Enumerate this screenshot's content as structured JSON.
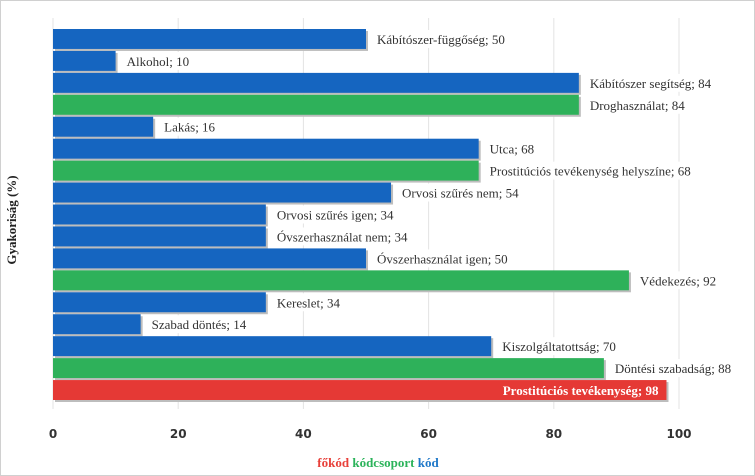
{
  "chart_data": {
    "type": "bar",
    "orientation": "horizontal",
    "ylabel": "Gyakoriság (%)",
    "xlim": [
      0,
      110
    ],
    "xticks": [
      0,
      20,
      40,
      60,
      80,
      100
    ],
    "grid": true,
    "legend": {
      "placement": "bottom",
      "items": [
        {
          "label": "főkód",
          "color": "#e8403a"
        },
        {
          "label": "kódcsoport",
          "color": "#2bb35a"
        },
        {
          "label": "kód",
          "color": "#1f78c8"
        }
      ]
    },
    "colors": {
      "kód": "#1565c0",
      "kódcsoport": "#2eb15a",
      "főkód": "#e53935"
    },
    "bars": [
      {
        "label": "Kábítószer-függőség; 50",
        "value": 50,
        "level": "kód"
      },
      {
        "label": "Alkohol; 10",
        "value": 10,
        "level": "kód"
      },
      {
        "label": "Kábítószer segítség; 84",
        "value": 84,
        "level": "kód"
      },
      {
        "label": "Droghasználat; 84",
        "value": 84,
        "level": "kódcsoport"
      },
      {
        "label": "Lakás; 16",
        "value": 16,
        "level": "kód"
      },
      {
        "label": "Utca; 68",
        "value": 68,
        "level": "kód"
      },
      {
        "label": "Prostitúciós tevékenység helyszíne; 68",
        "value": 68,
        "level": "kódcsoport"
      },
      {
        "label": "Orvosi szűrés nem; 54",
        "value": 54,
        "level": "kód"
      },
      {
        "label": "Orvosi szűrés igen; 34",
        "value": 34,
        "level": "kód"
      },
      {
        "label": "Óvszerhasználat nem; 34",
        "value": 34,
        "level": "kód"
      },
      {
        "label": "Óvszerhasználat igen; 50",
        "value": 50,
        "level": "kód"
      },
      {
        "label": "Védekezés; 92",
        "value": 92,
        "level": "kódcsoport"
      },
      {
        "label": "Kereslet; 34",
        "value": 34,
        "level": "kód"
      },
      {
        "label": "Szabad döntés; 14",
        "value": 14,
        "level": "kód"
      },
      {
        "label": "Kiszolgáltatottság; 70",
        "value": 70,
        "level": "kód"
      },
      {
        "label": "Döntési szabadság; 88",
        "value": 88,
        "level": "kódcsoport"
      },
      {
        "label": "Prostitúciós tevékenység; 98",
        "value": 98,
        "level": "főkód"
      }
    ]
  }
}
